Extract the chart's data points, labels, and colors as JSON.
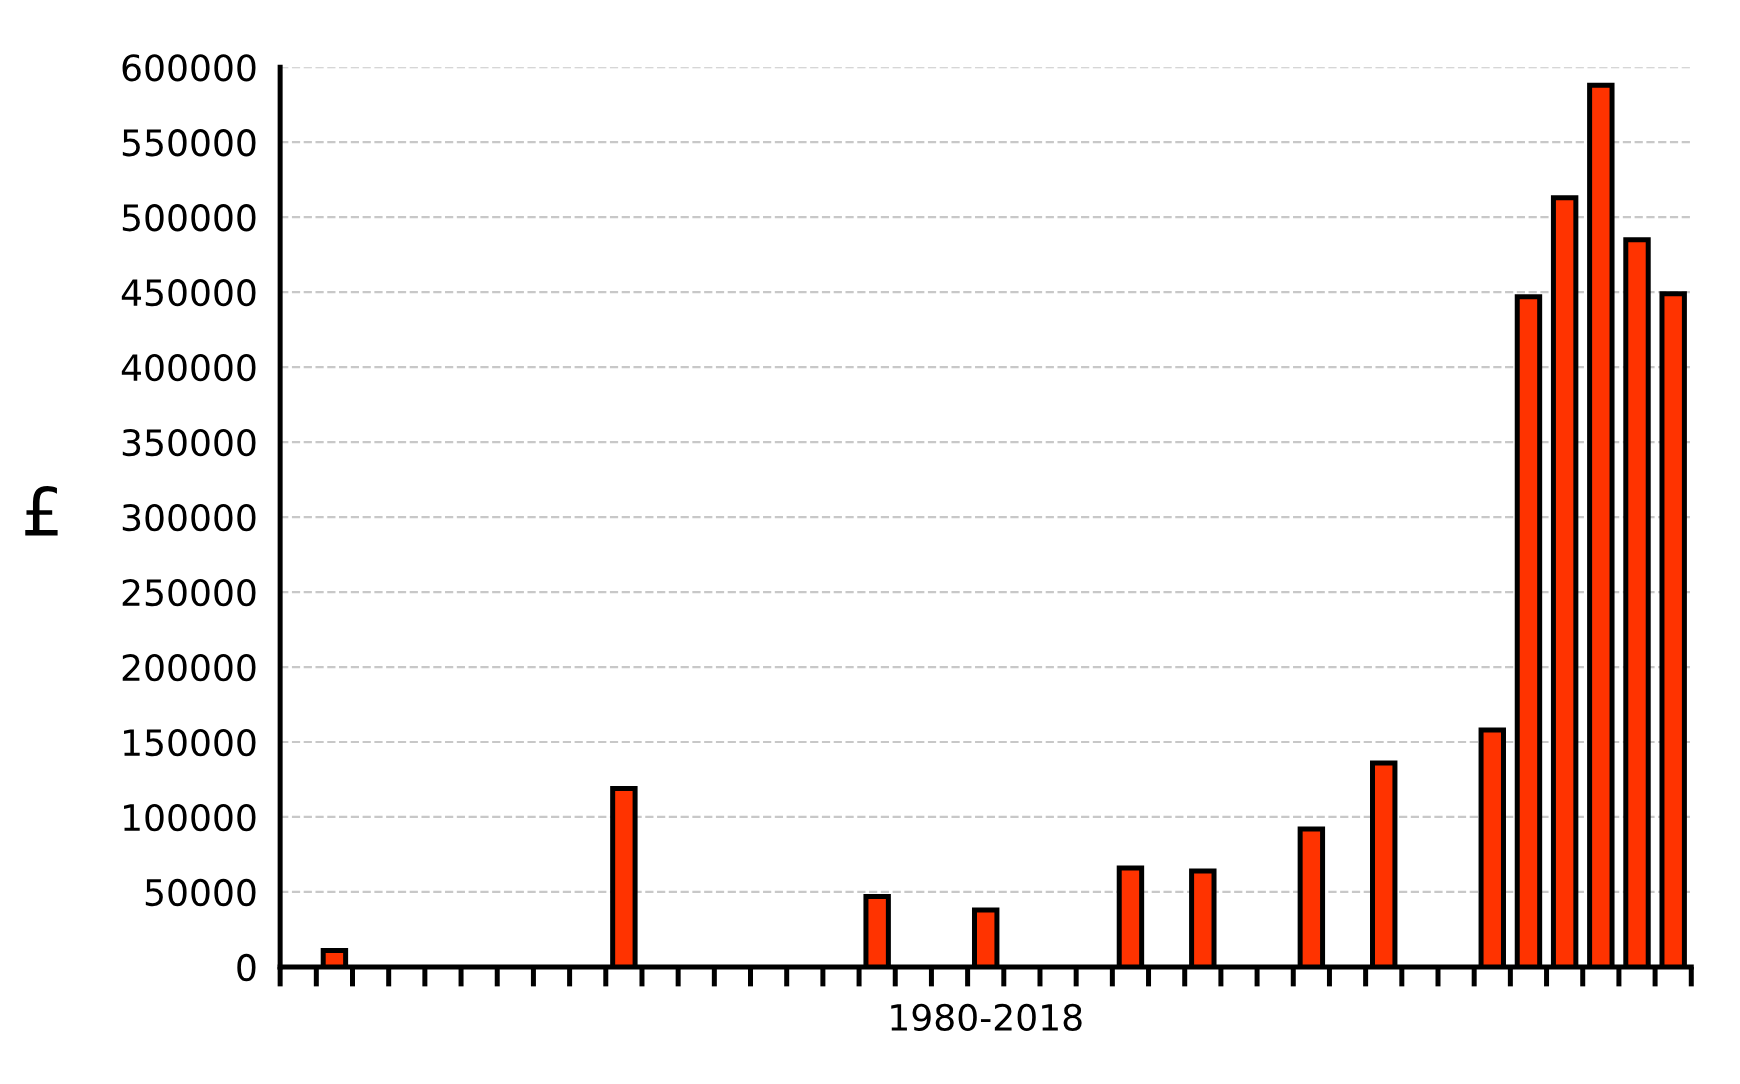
{
  "chart_data": {
    "type": "bar",
    "xlabel": "1980-2018",
    "ylabel": "£",
    "categories": [
      null,
      null,
      null,
      null,
      null,
      null,
      null,
      null,
      null,
      null,
      null,
      null,
      null,
      null,
      null,
      null,
      null,
      null,
      null,
      null,
      null,
      null,
      null,
      null,
      null,
      null,
      null,
      null,
      null,
      null,
      null,
      null,
      null,
      null,
      null,
      null,
      null,
      null,
      null
    ],
    "values": [
      0,
      11000,
      0,
      0,
      0,
      0,
      0,
      0,
      0,
      119000,
      0,
      0,
      0,
      0,
      0,
      0,
      47000,
      0,
      0,
      38000,
      0,
      0,
      0,
      66000,
      0,
      64000,
      0,
      0,
      92000,
      0,
      136000,
      0,
      0,
      158000,
      447000,
      513000,
      588000,
      485000,
      449000
    ],
    "color": "#ff3300",
    "ylim": [
      0,
      600000
    ],
    "yticks": [
      0,
      50000,
      100000,
      150000,
      200000,
      250000,
      300000,
      350000,
      400000,
      450000,
      500000,
      550000,
      600000
    ],
    "grid": "y",
    "tick_labels": "y",
    "legend": false
  }
}
